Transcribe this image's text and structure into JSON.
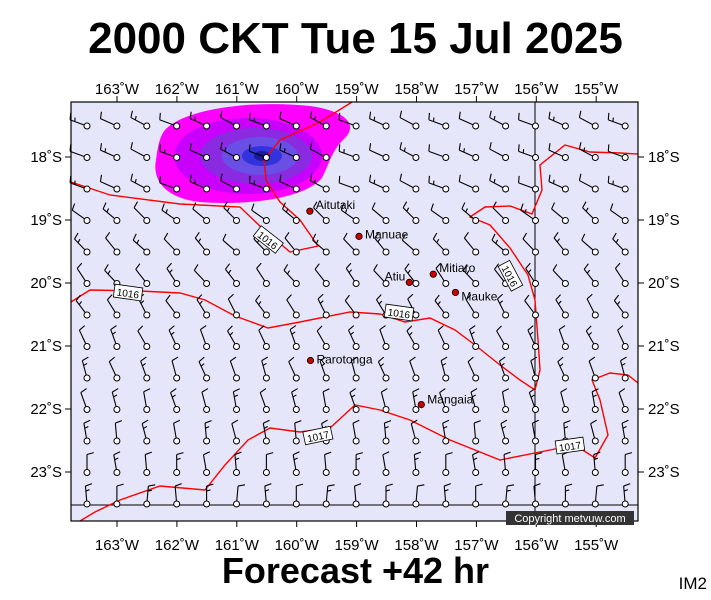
{
  "header": {
    "title": "2000 CKT Tue 15 Jul 2025"
  },
  "footer": {
    "forecast": "Forecast +42 hr",
    "image_code": "IM2"
  },
  "map": {
    "colors": {
      "background": "#e6e6fa",
      "isobar": "#ff0000",
      "precip_outer": "#ff00ff",
      "precip_inner": "#0000cc"
    },
    "lon_ticks": [
      "163˚W",
      "162˚W",
      "161˚W",
      "160˚W",
      "159˚W",
      "158˚W",
      "157˚W",
      "156˚W",
      "155˚W"
    ],
    "lat_ticks": [
      "18˚S",
      "19˚S",
      "20˚S",
      "21˚S",
      "22˚S",
      "23˚S"
    ],
    "places": [
      {
        "name": "Aitutaki",
        "lon": -159.78,
        "lat": -18.86
      },
      {
        "name": "Manuae",
        "lon": -158.96,
        "lat": -19.26
      },
      {
        "name": "Atiu",
        "lon": -158.12,
        "lat": -19.99
      },
      {
        "name": "Mitiaro",
        "lon": -157.72,
        "lat": -19.86
      },
      {
        "name": "Mauke",
        "lon": -157.35,
        "lat": -20.15
      },
      {
        "name": "Rarotonga",
        "lon": -159.77,
        "lat": -21.23
      },
      {
        "name": "Mangaia",
        "lon": -157.92,
        "lat": -21.93
      }
    ],
    "isobar_labels": [
      "1016",
      "1016",
      "1016",
      "1016",
      "1017",
      "1017"
    ],
    "copyright": "Copyright metvuw.com"
  }
}
